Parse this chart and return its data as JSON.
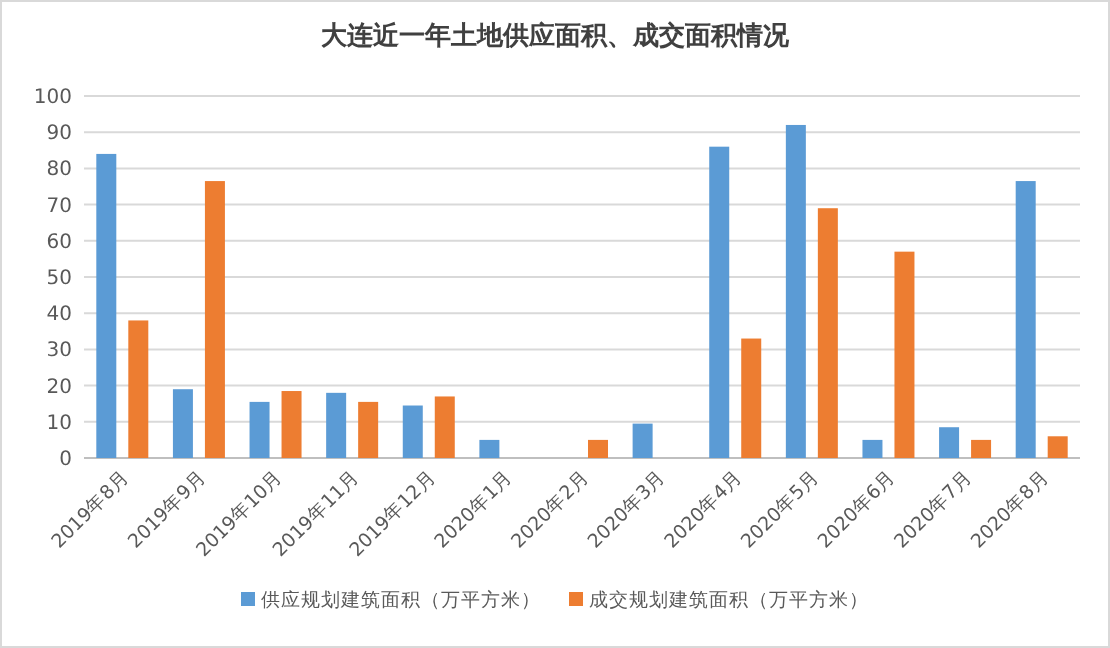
{
  "chart_data": {
    "type": "bar",
    "title": "大连近一年土地供应面积、成交面积情况",
    "categories": [
      "2019年8月",
      "2019年9月",
      "2019年10月",
      "2019年11月",
      "2019年12月",
      "2020年1月",
      "2020年2月",
      "2020年3月",
      "2020年4月",
      "2020年5月",
      "2020年6月",
      "2020年7月",
      "2020年8月"
    ],
    "series": [
      {
        "name": "供应规划建筑面积（万平方米）",
        "color": "#5b9bd5",
        "values": [
          84,
          19,
          15.5,
          18,
          14.5,
          5,
          null,
          9.5,
          86,
          92,
          5,
          8.5,
          76.5
        ]
      },
      {
        "name": "成交规划建筑面积（万平方米）",
        "color": "#ed7d31",
        "values": [
          38,
          76.5,
          18.5,
          15.5,
          17,
          null,
          5,
          null,
          33,
          69,
          57,
          5,
          6
        ]
      }
    ],
    "ylim": [
      0,
      100
    ],
    "yticks": [
      0,
      10,
      20,
      30,
      40,
      50,
      60,
      70,
      80,
      90,
      100
    ],
    "grid": "y",
    "legend": "bottom"
  }
}
